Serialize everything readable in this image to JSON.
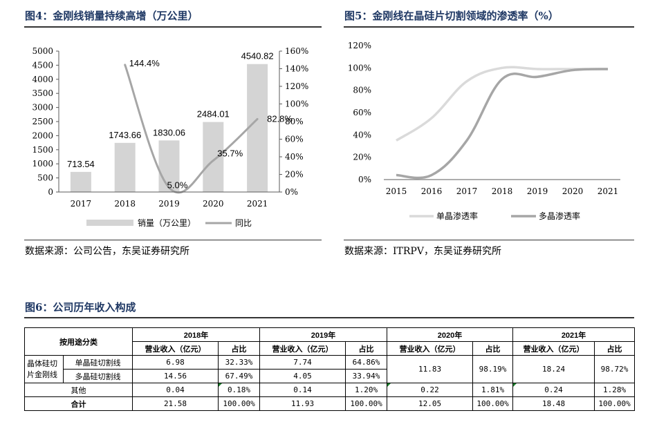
{
  "fig4": {
    "title": "图4：金刚线销量持续高增（万公里）",
    "source": "数据来源：公司公告，东吴证券研究所",
    "chart_data": {
      "type": "bar+line",
      "categories": [
        "2017",
        "2018",
        "2019",
        "2020",
        "2021"
      ],
      "series": [
        {
          "name": "销量（万公里）",
          "type": "bar",
          "axis": "left",
          "values": [
            713.54,
            1743.66,
            1830.06,
            2484.01,
            4540.82
          ]
        },
        {
          "name": "同比",
          "type": "line",
          "axis": "right",
          "values": [
            null,
            144.4,
            5.0,
            35.7,
            82.8
          ]
        }
      ],
      "bar_labels": [
        "713.54",
        "1743.66",
        "1830.06",
        "2484.01",
        "4540.82"
      ],
      "line_labels": [
        "144.4%",
        "5.0%",
        "35.7%",
        "82.8%"
      ],
      "left_ticks": [
        "0",
        "500",
        "1000",
        "1500",
        "2000",
        "2500",
        "3000",
        "3500",
        "4000",
        "4500",
        "5000"
      ],
      "right_ticks": [
        "0%",
        "20%",
        "40%",
        "60%",
        "80%",
        "100%",
        "120%",
        "140%",
        "160%"
      ],
      "ylim_left": [
        0,
        5000
      ],
      "ylim_right": [
        0,
        160
      ],
      "legend": [
        "销量（万公里）",
        "同比"
      ],
      "colors": {
        "bar": "#d4d4d4",
        "line": "#a6a6a6"
      }
    }
  },
  "fig5": {
    "title": "图5：金刚线在晶硅片切割领域的渗透率（%）",
    "source": "数据来源：ITRPV，东吴证券研究所",
    "chart_data": {
      "type": "line",
      "x": [
        "2015",
        "2016",
        "2017",
        "2018",
        "2019",
        "2020",
        "2021"
      ],
      "series": [
        {
          "name": "单晶渗透率",
          "values": [
            35,
            55,
            88,
            100,
            99,
            99,
            99
          ]
        },
        {
          "name": "多晶渗透率",
          "values": [
            4,
            4,
            35,
            90,
            92,
            98,
            99
          ]
        }
      ],
      "y_ticks": [
        "0%",
        "20%",
        "40%",
        "60%",
        "80%",
        "100%",
        "120%"
      ],
      "ylim": [
        0,
        120
      ],
      "legend": [
        "单晶渗透率",
        "多晶渗透率"
      ],
      "colors": {
        "mono": "#dadada",
        "poly": "#a6a6a6"
      }
    }
  },
  "fig6": {
    "title": "图6：公司历年收入构成",
    "header_category": "按用途分类",
    "years": [
      "2018年",
      "2019年",
      "2020年",
      "2021年"
    ],
    "col_revenue": "营业收入（亿元）",
    "col_share": "占比",
    "group_label": "晶体硅切片金刚线",
    "rows": {
      "mono": {
        "label": "单晶硅切割线",
        "y2018_rev": "6.98",
        "y2018_share": "32.33%",
        "y2019_rev": "7.74",
        "y2019_share": "64.86%"
      },
      "poly": {
        "label": "多晶硅切割线",
        "y2018_rev": "14.56",
        "y2018_share": "67.49%",
        "y2019_rev": "4.05",
        "y2019_share": "33.94%"
      },
      "merged": {
        "y2020_rev": "11.83",
        "y2020_share": "98.19%",
        "y2021_rev": "18.24",
        "y2021_share": "98.72%"
      },
      "other": {
        "label": "其他",
        "y2018_rev": "0.04",
        "y2018_share": "0.18%",
        "y2019_rev": "0.14",
        "y2019_share": "1.20%",
        "y2020_rev": "0.22",
        "y2020_share": "1.81%",
        "y2021_rev": "0.24",
        "y2021_share": "1.28%"
      },
      "total": {
        "label": "合计",
        "y2018_rev": "21.58",
        "y2018_share": "100.00%",
        "y2019_rev": "11.93",
        "y2019_share": "100.00%",
        "y2020_rev": "12.05",
        "y2020_share": "100.00%",
        "y2021_rev": "18.48",
        "y2021_share": "100.00%"
      }
    }
  }
}
